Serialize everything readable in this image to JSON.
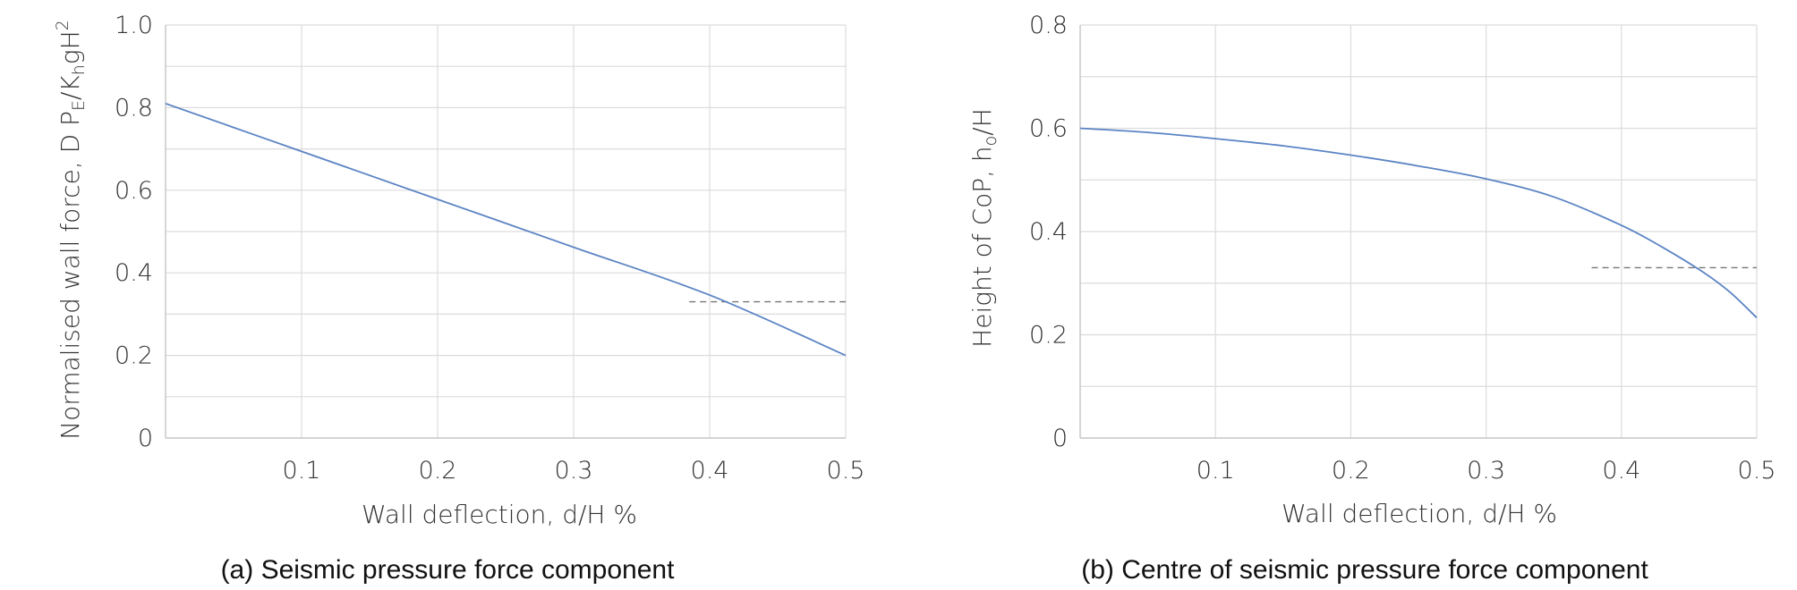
{
  "chart_data": [
    {
      "type": "line",
      "caption": "(a) Seismic pressure force component",
      "xlabel": "Wall deflection, d/H %",
      "ylabel": "Normalised wall force, D Pₑ/KₕgH²",
      "ylabel_parts": {
        "main": "Normalised wall force, D P",
        "sub1": "E",
        "mid": "/K",
        "sub2": "h",
        "tail": "gH",
        "sup": "2"
      },
      "xlim": [
        0,
        0.5
      ],
      "ylim": [
        0,
        1.0
      ],
      "xticks": [
        0.1,
        0.2,
        0.3,
        0.4,
        0.5
      ],
      "xtick_labels": [
        "0.1",
        "0.2",
        "0.3",
        "0.4",
        "0.5"
      ],
      "yticks": [
        0,
        0.2,
        0.4,
        0.6,
        0.8,
        1.0
      ],
      "ytick_labels": [
        "0",
        "0.2",
        "0.4",
        "0.6",
        "0.8",
        "1.0"
      ],
      "series": [
        {
          "name": "normalised wall force",
          "x": [
            0,
            0.1,
            0.2,
            0.3,
            0.4,
            0.5
          ],
          "y": [
            0.81,
            0.694,
            0.578,
            0.462,
            0.346,
            0.2
          ]
        }
      ],
      "reference_line": {
        "y": 0.33,
        "x_start": 0.385,
        "x_end": 0.5
      }
    },
    {
      "type": "line",
      "caption": "(b) Centre of seismic pressure force component",
      "xlabel": "Wall deflection, d/H %",
      "ylabel": "Height of CoP, hₒ/H",
      "ylabel_parts": {
        "main": "Height of CoP, h",
        "sub1": "o",
        "tail": "/H"
      },
      "xlim": [
        0,
        0.5
      ],
      "ylim": [
        0,
        0.8
      ],
      "xticks": [
        0.1,
        0.2,
        0.3,
        0.4,
        0.5
      ],
      "xtick_labels": [
        "0.1",
        "0.2",
        "0.3",
        "0.4",
        "0.5"
      ],
      "yticks": [
        0,
        0.2,
        0.4,
        0.6,
        0.8
      ],
      "ytick_labels": [
        "0",
        "0.2",
        "0.4",
        "0.6",
        "0.8"
      ],
      "series": [
        {
          "name": "height of centre of pressure",
          "x": [
            0,
            0.05,
            0.1,
            0.15,
            0.2,
            0.25,
            0.3,
            0.35,
            0.4,
            0.43,
            0.46,
            0.48,
            0.5
          ],
          "y": [
            0.6,
            0.592,
            0.58,
            0.566,
            0.548,
            0.527,
            0.502,
            0.467,
            0.412,
            0.37,
            0.322,
            0.283,
            0.233
          ]
        }
      ],
      "reference_line": {
        "y": 0.33,
        "x_start": 0.378,
        "x_end": 0.5
      }
    }
  ],
  "style": {
    "line_color": "#5b84c4",
    "grid_color": "#dcdcdc",
    "axis_color": "#c8c8c8",
    "reference_color": "#777777"
  }
}
